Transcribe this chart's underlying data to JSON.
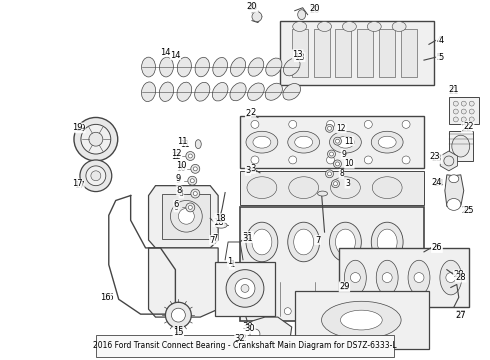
{
  "title": "2016 Ford Transit Connect Bearing - Crankshaft Main Diagram for DS7Z-6333-L",
  "bg": "#ffffff",
  "lc": "#444444",
  "fig_w": 4.9,
  "fig_h": 3.6,
  "dpi": 100
}
